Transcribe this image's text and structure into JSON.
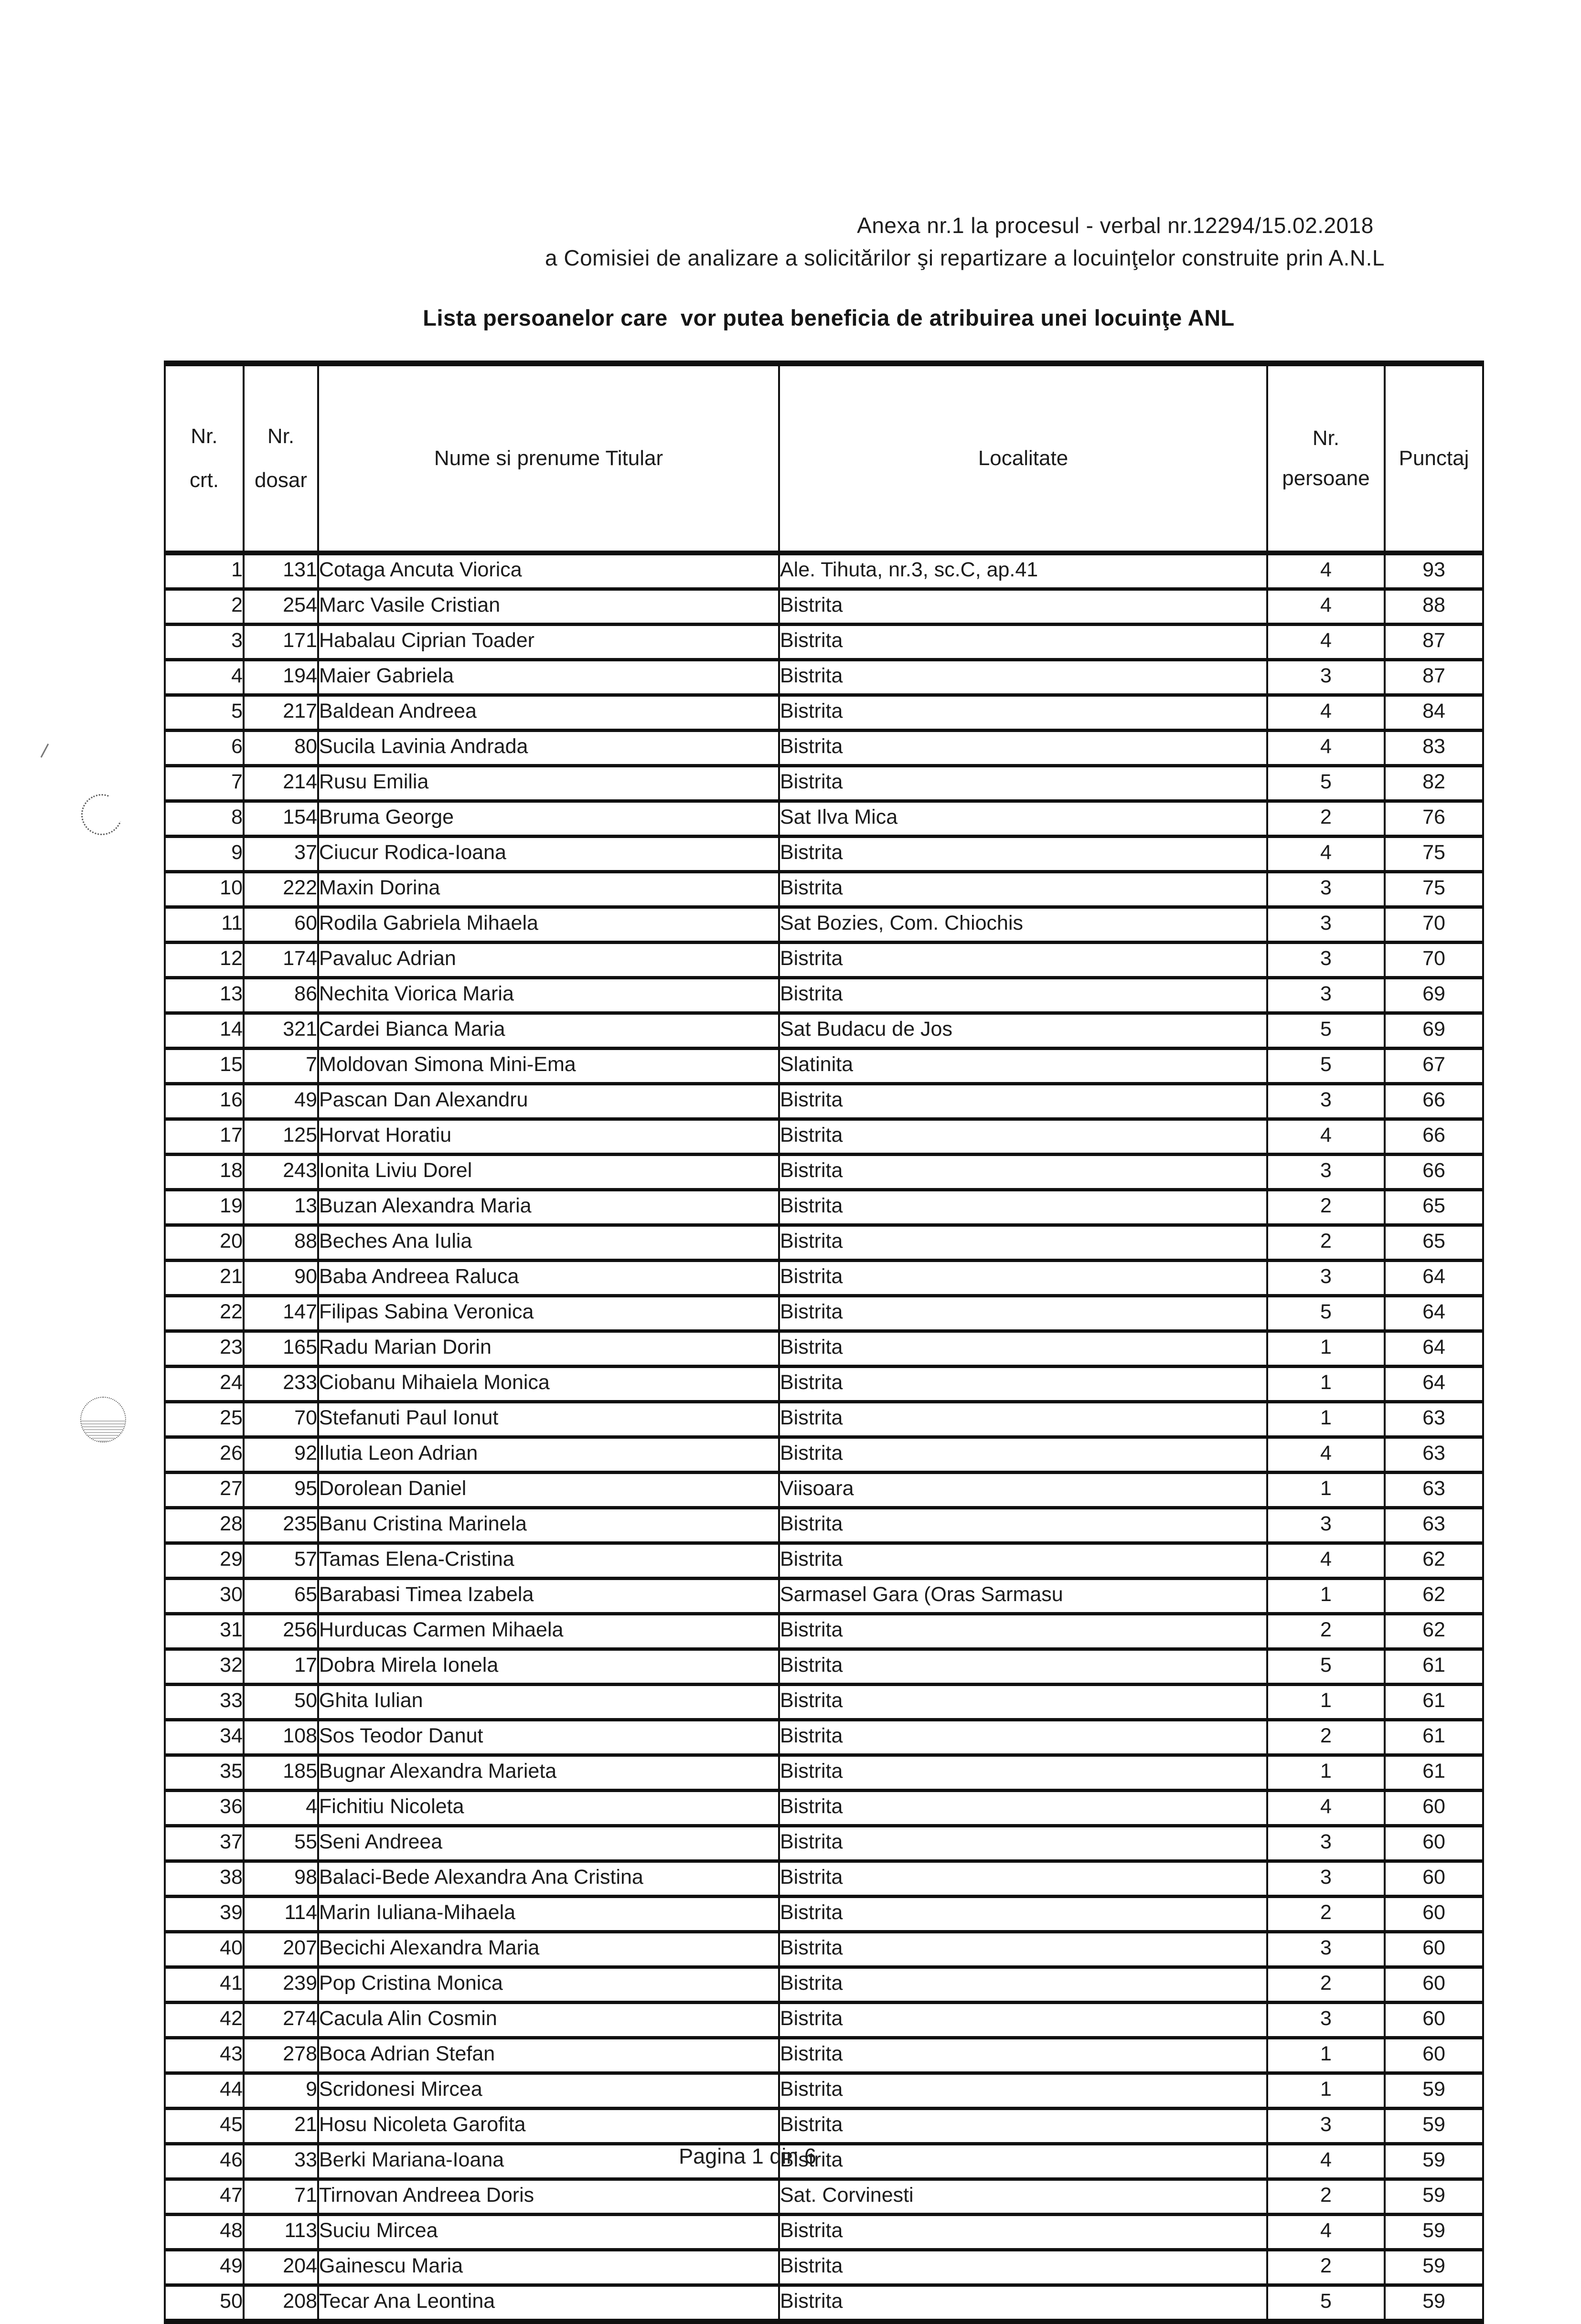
{
  "header": {
    "annex_line": "Anexa nr.1 la procesul - verbal nr.12294/15.02.2018",
    "commission_line": "a Comisiei de analizare a solicitărilor şi repartizare a locuinţelor construite prin A.N.L",
    "title": "Lista persoanelor care  vor putea beneficia de atribuirea unei locuinţe ANL"
  },
  "table": {
    "columns": {
      "nr_crt_line1": "Nr.",
      "nr_crt_line2": "crt.",
      "nr_dosar_line1": "Nr.",
      "nr_dosar_line2": "dosar",
      "name": "Nume si prenume Titular",
      "locality": "Localitate",
      "persons_line1": "Nr.",
      "persons_line2": "persoane",
      "score": "Punctaj"
    },
    "rows": [
      [
        1,
        131,
        "Cotaga Ancuta Viorica",
        "Ale. Tihuta, nr.3, sc.C, ap.41",
        4,
        93
      ],
      [
        2,
        254,
        "Marc Vasile Cristian",
        "Bistrita",
        4,
        88
      ],
      [
        3,
        171,
        "Habalau Ciprian Toader",
        "Bistrita",
        4,
        87
      ],
      [
        4,
        194,
        "Maier Gabriela",
        "Bistrita",
        3,
        87
      ],
      [
        5,
        217,
        "Baldean Andreea",
        "Bistrita",
        4,
        84
      ],
      [
        6,
        80,
        "Sucila Lavinia Andrada",
        "Bistrita",
        4,
        83
      ],
      [
        7,
        214,
        "Rusu Emilia",
        "Bistrita",
        5,
        82
      ],
      [
        8,
        154,
        "Bruma George",
        "Sat Ilva Mica",
        2,
        76
      ],
      [
        9,
        37,
        "Ciucur Rodica-Ioana",
        "Bistrita",
        4,
        75
      ],
      [
        10,
        222,
        "Maxin Dorina",
        "Bistrita",
        3,
        75
      ],
      [
        11,
        60,
        "Rodila Gabriela Mihaela",
        "Sat Bozies, Com. Chiochis",
        3,
        70
      ],
      [
        12,
        174,
        "Pavaluc Adrian",
        "Bistrita",
        3,
        70
      ],
      [
        13,
        86,
        "Nechita Viorica Maria",
        "Bistrita",
        3,
        69
      ],
      [
        14,
        321,
        "Cardei Bianca Maria",
        "Sat Budacu de Jos",
        5,
        69
      ],
      [
        15,
        7,
        "Moldovan Simona Mini-Ema",
        "Slatinita",
        5,
        67
      ],
      [
        16,
        49,
        "Pascan Dan Alexandru",
        "Bistrita",
        3,
        66
      ],
      [
        17,
        125,
        "Horvat Horatiu",
        "Bistrita",
        4,
        66
      ],
      [
        18,
        243,
        "Ionita Liviu Dorel",
        "Bistrita",
        3,
        66
      ],
      [
        19,
        13,
        "Buzan Alexandra Maria",
        "Bistrita",
        2,
        65
      ],
      [
        20,
        88,
        "Beches Ana Iulia",
        "Bistrita",
        2,
        65
      ],
      [
        21,
        90,
        "Baba Andreea Raluca",
        "Bistrita",
        3,
        64
      ],
      [
        22,
        147,
        "Filipas Sabina Veronica",
        "Bistrita",
        5,
        64
      ],
      [
        23,
        165,
        "Radu Marian Dorin",
        "Bistrita",
        1,
        64
      ],
      [
        24,
        233,
        "Ciobanu Mihaiela Monica",
        "Bistrita",
        1,
        64
      ],
      [
        25,
        70,
        "Stefanuti Paul Ionut",
        "Bistrita",
        1,
        63
      ],
      [
        26,
        92,
        "Ilutia Leon Adrian",
        "Bistrita",
        4,
        63
      ],
      [
        27,
        95,
        "Dorolean Daniel",
        "Viisoara",
        1,
        63
      ],
      [
        28,
        235,
        "Banu Cristina Marinela",
        "Bistrita",
        3,
        63
      ],
      [
        29,
        57,
        "Tamas Elena-Cristina",
        "Bistrita",
        4,
        62
      ],
      [
        30,
        65,
        "Barabasi Timea Izabela",
        "Sarmasel Gara (Oras Sarmasu",
        1,
        62
      ],
      [
        31,
        256,
        "Hurducas Carmen Mihaela",
        "Bistrita",
        2,
        62
      ],
      [
        32,
        17,
        "Dobra Mirela Ionela",
        "Bistrita",
        5,
        61
      ],
      [
        33,
        50,
        "Ghita Iulian",
        "Bistrita",
        1,
        61
      ],
      [
        34,
        108,
        "Sos Teodor Danut",
        "Bistrita",
        2,
        61
      ],
      [
        35,
        185,
        "Bugnar Alexandra Marieta",
        "Bistrita",
        1,
        61
      ],
      [
        36,
        4,
        "Fichitiu Nicoleta",
        "Bistrita",
        4,
        60
      ],
      [
        37,
        55,
        "Seni Andreea",
        "Bistrita",
        3,
        60
      ],
      [
        38,
        98,
        "Balaci-Bede Alexandra Ana Cristina",
        "Bistrita",
        3,
        60
      ],
      [
        39,
        114,
        "Marin Iuliana-Mihaela",
        "Bistrita",
        2,
        60
      ],
      [
        40,
        207,
        "Becichi Alexandra Maria",
        "Bistrita",
        3,
        60
      ],
      [
        41,
        239,
        "Pop Cristina Monica",
        "Bistrita",
        2,
        60
      ],
      [
        42,
        274,
        "Cacula Alin Cosmin",
        "Bistrita",
        3,
        60
      ],
      [
        43,
        278,
        "Boca Adrian Stefan",
        "Bistrita",
        1,
        60
      ],
      [
        44,
        9,
        "Scridonesi Mircea",
        "Bistrita",
        1,
        59
      ],
      [
        45,
        21,
        "Hosu Nicoleta Garofita",
        "Bistrita",
        3,
        59
      ],
      [
        46,
        33,
        "Berki Mariana-Ioana",
        "Bistrita",
        4,
        59
      ],
      [
        47,
        71,
        "Tirnovan Andreea Doris",
        "Sat. Corvinesti",
        2,
        59
      ],
      [
        48,
        113,
        "Suciu Mircea",
        "Bistrita",
        4,
        59
      ],
      [
        49,
        204,
        "Gainescu Maria",
        "Bistrita",
        2,
        59
      ],
      [
        50,
        208,
        "Tecar Ana Leontina",
        "Bistrita",
        5,
        59
      ]
    ]
  },
  "footer": {
    "page_indicator": "Pagina 1 din 6"
  }
}
